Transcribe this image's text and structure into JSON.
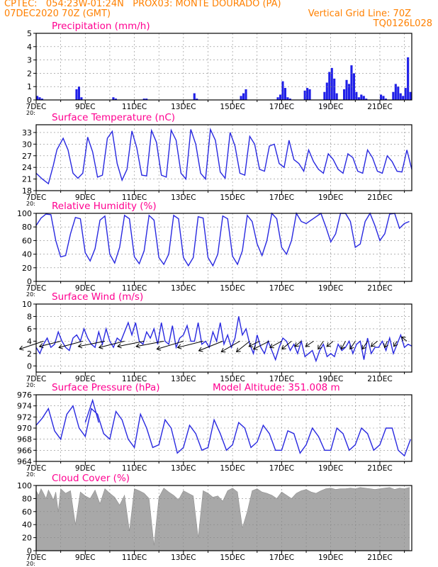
{
  "header": {
    "line1": "CPTEC:   054:23W-01:24N   PROX03: MONTE DOURADO (PA)",
    "line2_left": "07DEC2020 70Z (GMT)",
    "line2_right": "Vertical Grid Line: 70Z",
    "line3_right": "TQ0126L028"
  },
  "colors": {
    "header": "#ff8000",
    "title": "#ff0090",
    "line": "#2828e0",
    "precip_bar": "#2020e8",
    "cloud_fill": "#a8a8a8",
    "grid": "#888888",
    "wind_arrow": "#000000"
  },
  "chart_data": [
    {
      "id": "precip",
      "type": "bar",
      "title": "Precipitation (mm/h)",
      "ylim": [
        0,
        5
      ],
      "yticks": [
        "0",
        "1",
        "2",
        "3",
        "4",
        "5"
      ],
      "x": [
        0.0,
        0.1,
        0.2,
        1.6,
        1.7,
        1.8,
        3.1,
        3.2,
        4.35,
        4.45,
        6.4,
        6.5,
        8.3,
        8.4,
        8.5,
        9.8,
        9.9,
        10.0,
        10.1,
        10.2,
        10.3,
        10.9,
        11.0,
        11.1,
        11.7,
        11.8,
        11.9,
        12.0,
        12.1,
        12.2,
        12.5,
        12.6,
        12.7,
        12.8,
        12.9,
        13.0,
        13.1,
        13.2,
        13.3,
        13.4,
        14.0,
        14.1,
        14.2,
        14.5,
        14.6,
        14.7,
        14.8,
        14.9,
        15.0,
        15.1,
        15.2
      ],
      "values": [
        0.3,
        0.2,
        0.1,
        0.8,
        1.0,
        0.2,
        0.2,
        0.1,
        0.1,
        0.1,
        0.5,
        0.1,
        0.3,
        0.5,
        0.8,
        0.2,
        0.4,
        1.4,
        0.9,
        0.2,
        0.1,
        0.7,
        0.9,
        0.8,
        0.6,
        1.3,
        2.1,
        2.4,
        1.6,
        0.5,
        0.8,
        1.5,
        1.2,
        2.6,
        2.0,
        0.6,
        0.2,
        0.4,
        0.3,
        0.1,
        0.4,
        0.3,
        0.1,
        0.6,
        1.2,
        1.0,
        0.5,
        0.3,
        0.9,
        3.2,
        0.6
      ]
    },
    {
      "id": "temperature",
      "type": "line",
      "title": "Surface Temperature (nC)",
      "ylim": [
        18,
        35
      ],
      "yticks": [
        "18",
        "21",
        "24",
        "27",
        "30",
        "33"
      ],
      "x": [
        0.0,
        0.25,
        0.5,
        0.7,
        0.85,
        1.1,
        1.3,
        1.5,
        1.7,
        1.9,
        2.1,
        2.3,
        2.5,
        2.7,
        2.9,
        3.1,
        3.3,
        3.5,
        3.7,
        3.9,
        4.1,
        4.3,
        4.5,
        4.7,
        4.9,
        5.1,
        5.3,
        5.5,
        5.7,
        5.9,
        6.1,
        6.3,
        6.5,
        6.7,
        6.9,
        7.1,
        7.3,
        7.5,
        7.7,
        7.9,
        8.1,
        8.3,
        8.5,
        8.7,
        8.9,
        9.1,
        9.3,
        9.5,
        9.7,
        9.9,
        10.1,
        10.3,
        10.5,
        10.7,
        10.9,
        11.1,
        11.3,
        11.5,
        11.7,
        11.9,
        12.1,
        12.3,
        12.5,
        12.7,
        12.9,
        13.1,
        13.3,
        13.5,
        13.7,
        13.9,
        14.1,
        14.3,
        14.5,
        14.7,
        14.9,
        15.1,
        15.3
      ],
      "values": [
        22.5,
        21.0,
        19.8,
        24.5,
        28.6,
        31.5,
        28.5,
        22.5,
        21.2,
        22.5,
        31.8,
        28.0,
        21.5,
        22.0,
        31.5,
        33.3,
        25.0,
        20.7,
        23.5,
        33.4,
        29.0,
        22.0,
        21.8,
        33.5,
        30.5,
        22.0,
        21.5,
        33.6,
        31.0,
        22.5,
        21.0,
        33.8,
        30.0,
        22.5,
        21.0,
        33.8,
        31.0,
        22.8,
        21.2,
        33.0,
        29.5,
        22.5,
        22.0,
        32.0,
        30.0,
        23.5,
        23.0,
        29.5,
        30.0,
        25.0,
        24.0,
        31.0,
        26.0,
        25.0,
        23.0,
        28.5,
        25.5,
        23.5,
        22.5,
        27.5,
        26.0,
        23.5,
        22.5,
        27.5,
        26.5,
        23.0,
        22.5,
        28.5,
        26.5,
        23.0,
        22.5,
        27.0,
        25.5,
        23.0,
        22.8,
        28.5,
        23.5
      ]
    },
    {
      "id": "humidity",
      "type": "line",
      "title": "Relative Humidity (%)",
      "ylim": [
        0,
        100
      ],
      "yticks": [
        "0",
        "20",
        "40",
        "60",
        "80",
        "100"
      ],
      "x": [
        0.0,
        0.2,
        0.4,
        0.6,
        0.8,
        1.0,
        1.2,
        1.4,
        1.6,
        1.8,
        2.0,
        2.2,
        2.4,
        2.6,
        2.8,
        3.0,
        3.2,
        3.4,
        3.6,
        3.8,
        4.0,
        4.2,
        4.4,
        4.6,
        4.8,
        5.0,
        5.2,
        5.4,
        5.6,
        5.8,
        6.0,
        6.2,
        6.4,
        6.6,
        6.8,
        7.0,
        7.2,
        7.4,
        7.6,
        7.8,
        8.0,
        8.2,
        8.4,
        8.6,
        8.8,
        9.0,
        9.2,
        9.4,
        9.6,
        9.8,
        10.0,
        10.2,
        10.4,
        10.6,
        10.8,
        11.0,
        11.2,
        11.4,
        11.6,
        11.8,
        12.0,
        12.2,
        12.4,
        12.6,
        12.8,
        13.0,
        13.2,
        13.4,
        13.6,
        13.8,
        14.0,
        14.2,
        14.4,
        14.6,
        14.8,
        15.0,
        15.2
      ],
      "values": [
        82,
        93,
        99,
        98,
        60,
        36,
        38,
        70,
        94,
        92,
        42,
        30,
        48,
        90,
        96,
        40,
        27,
        50,
        97,
        92,
        36,
        26,
        45,
        97,
        90,
        35,
        25,
        40,
        97,
        92,
        35,
        23,
        35,
        95,
        93,
        35,
        23,
        40,
        96,
        92,
        37,
        25,
        45,
        97,
        88,
        55,
        38,
        60,
        100,
        92,
        50,
        40,
        60,
        100,
        88,
        85,
        90,
        95,
        100,
        80,
        58,
        70,
        100,
        100,
        88,
        50,
        55,
        88,
        100,
        82,
        60,
        70,
        99,
        100,
        78,
        85,
        88
      ]
    },
    {
      "id": "wind",
      "type": "line",
      "title": "Surface Wind (m/s)",
      "ylim": [
        -1,
        10
      ],
      "yticks": [
        "0",
        "2",
        "4",
        "6",
        "8",
        "10"
      ],
      "x": [
        0.0,
        0.15,
        0.3,
        0.45,
        0.6,
        0.75,
        0.9,
        1.05,
        1.2,
        1.35,
        1.5,
        1.65,
        1.8,
        1.95,
        2.1,
        2.25,
        2.4,
        2.55,
        2.7,
        2.85,
        3.0,
        3.15,
        3.3,
        3.45,
        3.6,
        3.75,
        3.9,
        4.05,
        4.2,
        4.35,
        4.5,
        4.65,
        4.8,
        4.95,
        5.1,
        5.25,
        5.4,
        5.55,
        5.7,
        5.85,
        6.0,
        6.15,
        6.3,
        6.45,
        6.6,
        6.75,
        6.9,
        7.05,
        7.2,
        7.35,
        7.5,
        7.65,
        7.8,
        7.95,
        8.1,
        8.25,
        8.4,
        8.55,
        8.7,
        8.85,
        9.0,
        9.15,
        9.3,
        9.45,
        9.6,
        9.75,
        9.9,
        10.05,
        10.2,
        10.35,
        10.5,
        10.65,
        10.8,
        10.95,
        11.1,
        11.25,
        11.4,
        11.55,
        11.7,
        11.85,
        12.0,
        12.15,
        12.3,
        12.45,
        12.6,
        12.75,
        12.9,
        13.05,
        13.2,
        13.35,
        13.5,
        13.65,
        13.8,
        13.95,
        14.1,
        14.25,
        14.4,
        14.55,
        14.7,
        14.85,
        15.0,
        15.15,
        15.3
      ],
      "values": [
        3.0,
        2.0,
        3.5,
        4.5,
        3.0,
        3.5,
        5.5,
        4.0,
        3.0,
        2.5,
        4.5,
        5.0,
        4.0,
        6.0,
        4.5,
        3.5,
        3.0,
        5.5,
        3.5,
        6.0,
        4.0,
        3.0,
        4.5,
        4.0,
        5.5,
        7.0,
        5.0,
        7.0,
        4.0,
        3.5,
        5.5,
        4.5,
        6.0,
        3.5,
        7.0,
        4.0,
        3.5,
        6.5,
        3.0,
        4.5,
        5.0,
        6.5,
        4.0,
        4.0,
        7.0,
        3.5,
        4.0,
        3.0,
        5.5,
        4.0,
        7.0,
        3.5,
        5.0,
        3.0,
        4.5,
        8.0,
        5.0,
        6.0,
        3.5,
        2.0,
        5.0,
        3.0,
        2.0,
        4.0,
        2.5,
        1.0,
        3.0,
        4.5,
        4.0,
        2.5,
        3.5,
        2.0,
        4.0,
        1.5,
        2.0,
        2.5,
        0.8,
        2.5,
        3.5,
        1.5,
        2.0,
        1.5,
        3.5,
        2.5,
        3.0,
        4.0,
        2.0,
        3.5,
        4.0,
        1.0,
        4.5,
        2.0,
        3.0,
        3.0,
        4.0,
        2.5,
        4.5,
        2.0,
        3.5,
        5.0,
        3.0,
        3.5,
        3.2
      ],
      "vectors": {
        "x": [
          0.3,
          1.0,
          1.9,
          2.8,
          3.6,
          4.4,
          5.2,
          6.0,
          6.8,
          7.6,
          8.3,
          8.7,
          9.1,
          9.5,
          10.0,
          10.4,
          10.8,
          11.3,
          11.7,
          12.1,
          12.6,
          13.0,
          13.5,
          13.9,
          14.3,
          14.7,
          15.1
        ],
        "u": [
          -4.5,
          -4.0,
          -4.5,
          -5.0,
          -4.8,
          -5.0,
          -5.2,
          -5.0,
          -4.8,
          -4.5,
          -3.5,
          -2.5,
          -2.0,
          -3.0,
          -2.2,
          -1.8,
          -1.2,
          -1.5,
          -1.0,
          -1.2,
          -0.8,
          -1.0,
          -1.0,
          -1.2,
          -0.5,
          -0.6,
          -1.0
        ],
        "v": [
          -1.5,
          -1.0,
          -1.2,
          -1.0,
          -1.2,
          -1.0,
          -1.0,
          -1.5,
          -1.2,
          -1.8,
          -2.0,
          -2.0,
          -1.0,
          -1.5,
          -1.2,
          -1.5,
          -1.0,
          -1.0,
          -1.5,
          -1.0,
          -1.5,
          -1.5,
          -1.5,
          -1.0,
          -1.2,
          -1.0,
          0.8
        ]
      }
    },
    {
      "id": "pressure",
      "type": "line",
      "title": "Surface Pressure (hPa)",
      "annotation": "Model Altitude: 351.008 m",
      "ylim": [
        964,
        976
      ],
      "yticks": [
        "964",
        "966",
        "968",
        "970",
        "972",
        "974",
        "976"
      ],
      "x": [
        0.0,
        0.25,
        0.5,
        0.75,
        1.0,
        1.25,
        1.5,
        1.75,
        2.0,
        2.25,
        2.5,
        2.75,
        3.0,
        3.25,
        3.5,
        3.75,
        4.0,
        4.25,
        4.5,
        4.75,
        5.0,
        5.25,
        5.5,
        5.75,
        6.0,
        6.25,
        6.5,
        6.75,
        7.0,
        7.25,
        7.5,
        7.75,
        8.0,
        8.25,
        8.5,
        8.75,
        9.0,
        9.25,
        9.5,
        9.75,
        10.0,
        10.25,
        10.5,
        10.75,
        11.0,
        11.25,
        11.5,
        11.75,
        12.0,
        12.25,
        12.5,
        12.75,
        13.0,
        13.25,
        13.5,
        13.75,
        14.0,
        14.25,
        14.5,
        14.75,
        15.0,
        15.25
      ],
      "values": [
        970.5,
        971.8,
        973.5,
        969.5,
        968.0,
        972.5,
        974.0,
        970.0,
        968.5,
        973.5,
        972.5,
        969.0,
        968.0,
        973.0,
        971.5,
        968.0,
        966.5,
        972.5,
        970.0,
        966.5,
        967.0,
        971.5,
        970.0,
        965.5,
        966.5,
        970.5,
        969.0,
        966.0,
        966.5,
        971.5,
        969.0,
        966.0,
        967.0,
        971.0,
        970.0,
        966.5,
        967.5,
        970.5,
        969.0,
        966.0,
        966.0,
        969.5,
        969.0,
        965.5,
        967.0,
        970.0,
        968.5,
        966.0,
        966.0,
        970.0,
        969.0,
        966.0,
        967.0,
        970.0,
        969.0,
        966.0,
        967.0,
        970.0,
        970.0,
        966.0,
        965.0,
        968.0
      ],
      "highlight": {
        "x": [
          2.0,
          2.3,
          2.55
        ],
        "values": [
          971.0,
          975.0,
          971.0
        ]
      }
    },
    {
      "id": "cloud",
      "type": "area",
      "title": "Cloud Cover (%)",
      "ylim": [
        0,
        100
      ],
      "yticks": [
        "0",
        "20",
        "40",
        "60",
        "80",
        "100"
      ],
      "x": [
        0.0,
        0.1,
        0.2,
        0.3,
        0.4,
        0.5,
        0.6,
        0.7,
        0.8,
        0.9,
        1.0,
        1.2,
        1.4,
        1.6,
        1.8,
        2.0,
        2.2,
        2.4,
        2.6,
        2.8,
        3.0,
        3.2,
        3.4,
        3.6,
        3.8,
        4.0,
        4.2,
        4.4,
        4.6,
        4.8,
        5.0,
        5.2,
        5.4,
        5.6,
        5.8,
        6.0,
        6.2,
        6.4,
        6.6,
        6.8,
        7.0,
        7.2,
        7.4,
        7.6,
        7.8,
        8.0,
        8.2,
        8.4,
        8.6,
        8.8,
        9.0,
        9.2,
        9.4,
        9.6,
        9.8,
        10.0,
        10.2,
        10.4,
        10.6,
        10.8,
        11.0,
        11.2,
        11.4,
        11.6,
        11.8,
        12.0,
        12.2,
        12.4,
        12.6,
        12.8,
        13.0,
        13.2,
        13.4,
        13.6,
        13.8,
        14.0,
        14.2,
        14.4,
        14.6,
        14.8,
        15.0,
        15.2
      ],
      "values": [
        92,
        85,
        95,
        88,
        80,
        93,
        86,
        78,
        90,
        60,
        95,
        88,
        92,
        40,
        90,
        84,
        80,
        93,
        72,
        95,
        88,
        82,
        70,
        85,
        30,
        95,
        92,
        88,
        80,
        8,
        82,
        96,
        90,
        85,
        78,
        92,
        88,
        84,
        20,
        92,
        88,
        82,
        84,
        76,
        92,
        96,
        90,
        35,
        60,
        92,
        95,
        90,
        88,
        85,
        80,
        90,
        85,
        80,
        88,
        92,
        94,
        90,
        88,
        92,
        95,
        96,
        94,
        95,
        95,
        96,
        95,
        97,
        96,
        95,
        94,
        95,
        96,
        97,
        94,
        96,
        95,
        97
      ]
    }
  ],
  "x_axis": {
    "day_labels": [
      "7DEC",
      "9DEC",
      "11DEC",
      "13DEC",
      "15DEC",
      "17DEC",
      "19DEC",
      "21DEC"
    ],
    "overflow_label": "20:"
  }
}
